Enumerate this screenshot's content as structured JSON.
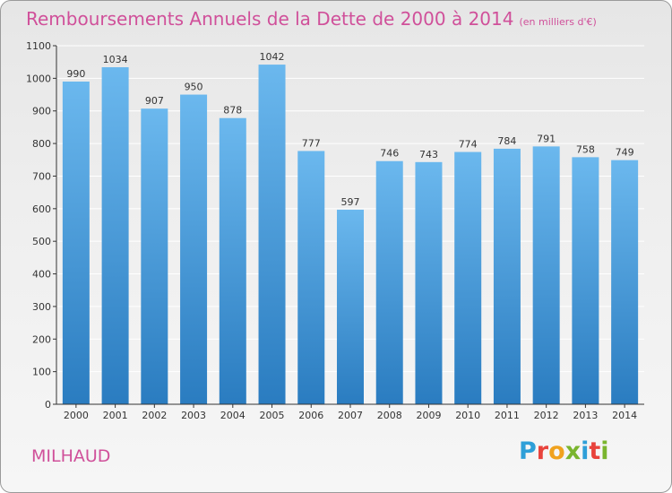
{
  "chart_data": {
    "type": "bar",
    "title": "Remboursements Annuels de la Dette de 2000 à 2014",
    "unit_label": "(en milliers d'€)",
    "categories": [
      "2000",
      "2001",
      "2002",
      "2003",
      "2004",
      "2005",
      "2006",
      "2007",
      "2008",
      "2009",
      "2010",
      "2011",
      "2012",
      "2013",
      "2014"
    ],
    "values": [
      990,
      1034,
      907,
      950,
      878,
      1042,
      777,
      597,
      746,
      743,
      774,
      784,
      791,
      758,
      749
    ],
    "ylim": [
      0,
      1100
    ],
    "yticks": [
      0,
      100,
      200,
      300,
      400,
      500,
      600,
      700,
      800,
      900,
      1000,
      1100
    ],
    "xlabel": "",
    "ylabel": "",
    "grid": true
  },
  "footer": {
    "city": "MILHAUD",
    "logo": "Proxiti"
  },
  "colors": {
    "bar_top": "#6bb8ee",
    "bar_bottom": "#2a7cc0",
    "title": "#d0509a",
    "grid": "#ffffff"
  }
}
